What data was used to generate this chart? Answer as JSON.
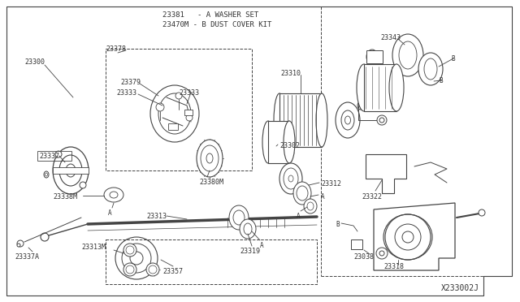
{
  "bg_color": "#ffffff",
  "diagram_id": "X233002J",
  "title_label1": "23381   - A WASHER SET",
  "title_label2": "23470M - B DUST COVER KIT",
  "lc": "#444444",
  "tc": "#333333",
  "fs": 6.5,
  "fig_w": 6.4,
  "fig_h": 3.72,
  "dpi": 100
}
